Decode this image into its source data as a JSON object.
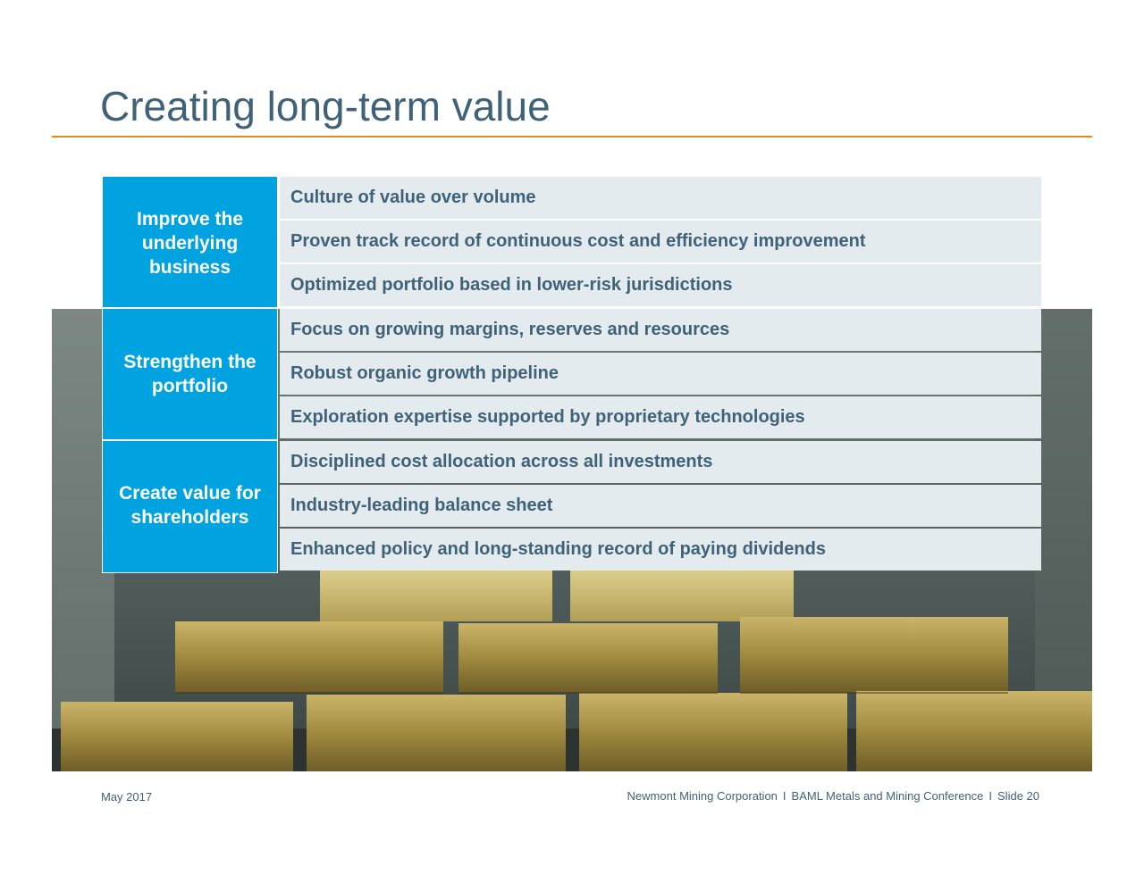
{
  "slide": {
    "title": "Creating long-term value"
  },
  "groups": [
    {
      "label_lines": [
        "Improve the",
        "underlying",
        "business"
      ],
      "rows": [
        "Culture of value over volume",
        "Proven track record of continuous cost and efficiency improvement",
        "Optimized portfolio based in lower-risk jurisdictions"
      ]
    },
    {
      "label_lines": [
        "Strengthen the",
        "portfolio"
      ],
      "rows": [
        "Focus on growing margins, reserves and resources",
        "Robust organic growth pipeline",
        "Exploration expertise supported by proprietary technologies"
      ]
    },
    {
      "label_lines": [
        "Create value for",
        "shareholders"
      ],
      "rows": [
        "Disciplined cost allocation across all investments",
        "Industry-leading balance sheet",
        "Enhanced policy and long-standing record of paying dividends"
      ]
    }
  ],
  "footer": {
    "date": "May 2017",
    "company": "Newmont Mining Corporation",
    "event": "BAML Metals and Mining Conference",
    "slide_number": "Slide 20",
    "separator": "I"
  },
  "colors": {
    "title": "#3f6278",
    "accent_rule": "#e08a25",
    "group_fill": "#00a3e0",
    "row_fill": "#e4ebef"
  }
}
